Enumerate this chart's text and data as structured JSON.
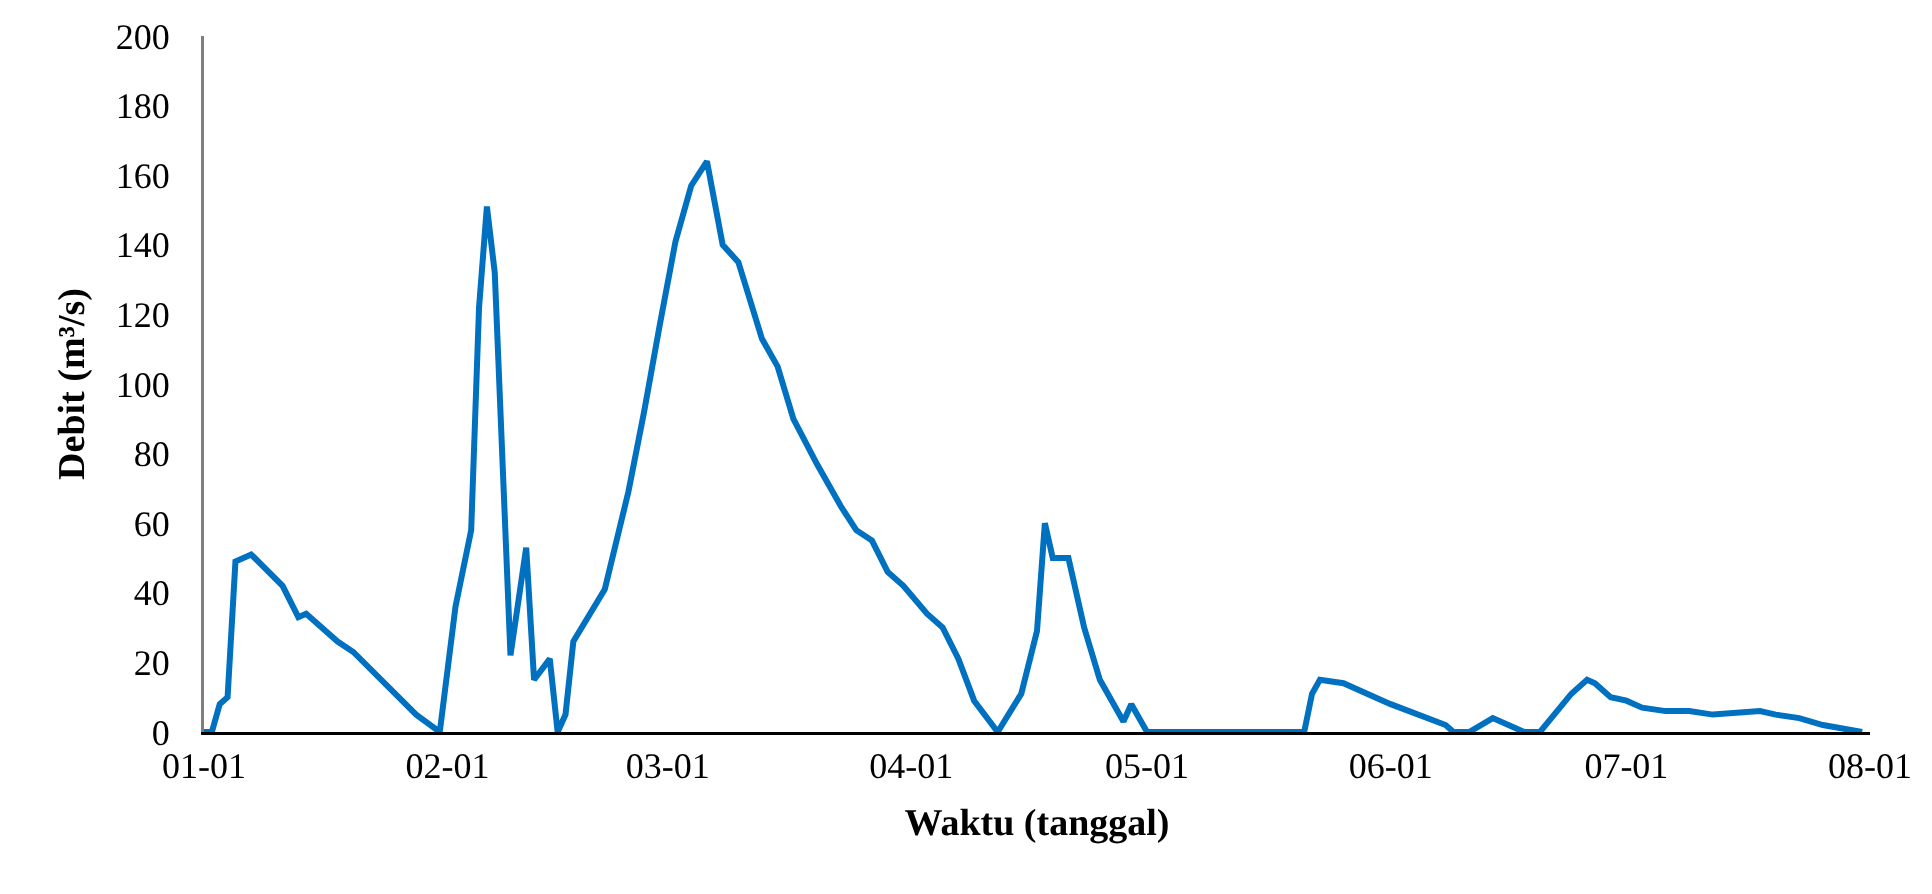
{
  "chart_data": {
    "type": "line",
    "xlabel": "Waktu (tanggal)",
    "ylabel": "Debit (m³/s)",
    "x": [
      "--01-01",
      "--01-02",
      "--01-03",
      "--01-04",
      "--01-05",
      "--01-07",
      "--01-11",
      "--01-13",
      "--01-14",
      "--01-18",
      "--01-20",
      "--01-28",
      "--01-31",
      "--02-02",
      "--02-04",
      "--02-05",
      "--02-06",
      "--02-07",
      "--02-09",
      "--02-11",
      "--02-12",
      "--02-14",
      "--02-15",
      "--02-16",
      "--02-17",
      "--02-21",
      "--02-24",
      "--02-26",
      "--02-28",
      "--03-02",
      "--03-04",
      "--03-06",
      "--03-08",
      "--03-10",
      "--03-13",
      "--03-15",
      "--03-17",
      "--03-20",
      "--03-23",
      "--03-25",
      "--03-27",
      "--03-29",
      "--03-31",
      "--04-03",
      "--04-05",
      "--04-07",
      "--04-09",
      "--04-12",
      "--04-15",
      "--04-17",
      "--04-18",
      "--04-19",
      "--04-21",
      "--04-23",
      "--04-25",
      "--04-28",
      "--04-29",
      "--05-01",
      "--05-21",
      "--05-22",
      "--05-23",
      "--05-26",
      "--05-31",
      "--06-01",
      "--06-08",
      "--06-09",
      "--06-11",
      "--06-14",
      "--06-18",
      "--06-20",
      "--06-24",
      "--06-26",
      "--06-27",
      "--06-29",
      "--07-01",
      "--07-03",
      "--07-06",
      "--07-09",
      "--07-12",
      "--07-18",
      "--07-20",
      "--07-23",
      "--07-26",
      "--07-31"
    ],
    "series": [
      {
        "color": "#0070c0",
        "values": [
          0,
          0,
          8,
          10,
          49,
          51,
          42,
          33,
          34,
          26,
          23,
          5,
          0,
          36,
          58,
          122,
          151,
          132,
          22,
          53,
          15,
          21,
          0,
          5,
          26,
          41,
          69,
          92,
          117,
          141,
          157,
          164,
          140,
          135,
          113,
          105,
          90,
          77,
          65,
          58,
          55,
          46,
          42,
          34,
          30,
          21,
          9,
          0,
          11,
          29,
          60,
          50,
          50,
          30,
          15,
          3,
          8,
          0,
          0,
          11,
          15,
          14,
          9,
          8,
          2,
          0,
          0,
          4,
          0,
          0,
          11,
          15,
          14,
          10,
          9,
          7,
          6,
          6,
          5,
          6,
          5,
          4,
          2,
          0
        ]
      }
    ],
    "xlim": [
      "--01-01",
      "--08-01"
    ],
    "xticks": [
      {
        "value": "--01-01",
        "label": "01-01"
      },
      {
        "value": "--02-01",
        "label": "02-01"
      },
      {
        "value": "--03-01",
        "label": "03-01"
      },
      {
        "value": "--04-01",
        "label": "04-01"
      },
      {
        "value": "--05-01",
        "label": "05-01"
      },
      {
        "value": "--06-01",
        "label": "06-01"
      },
      {
        "value": "--07-01",
        "label": "07-01"
      },
      {
        "value": "--08-01",
        "label": "08-01"
      }
    ],
    "ylim": [
      0,
      200
    ],
    "yticks": [
      0,
      20,
      40,
      60,
      80,
      100,
      120,
      140,
      160,
      180,
      200
    ],
    "grid": false,
    "marker": "none",
    "line_style": "solid"
  }
}
